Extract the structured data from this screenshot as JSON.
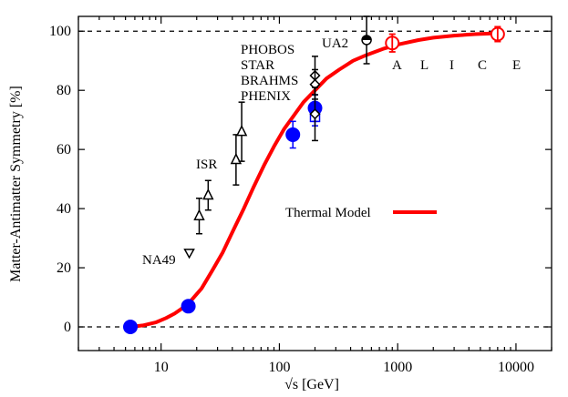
{
  "chart_data": {
    "type": "scatter",
    "title": "",
    "xlabel": "√s [GeV]",
    "ylabel": "Matter-Antimatter Symmetry [%]",
    "xscale": "log",
    "xlim": [
      2,
      20000
    ],
    "ylim": [
      -8,
      105
    ],
    "xticks": [
      {
        "value": 10,
        "label": "10"
      },
      {
        "value": 100,
        "label": "100"
      },
      {
        "value": 1000,
        "label": "1000"
      },
      {
        "value": 10000,
        "label": "10000"
      }
    ],
    "yticks": [
      {
        "value": 0,
        "label": "0"
      },
      {
        "value": 20,
        "label": "20"
      },
      {
        "value": 40,
        "label": "40"
      },
      {
        "value": 60,
        "label": "60"
      },
      {
        "value": 80,
        "label": "80"
      },
      {
        "value": 100,
        "label": "100"
      }
    ],
    "reference_lines": [
      0,
      100
    ],
    "thermal_model": {
      "name": "Thermal Model",
      "color": "#ff0000",
      "x": [
        5.5,
        7,
        9,
        11,
        13,
        16,
        18,
        22,
        27,
        33,
        40,
        50,
        60,
        75,
        90,
        110,
        130,
        160,
        200,
        250,
        320,
        420,
        550,
        750,
        1000,
        1500,
        2000,
        3000,
        4500,
        7000
      ],
      "y": [
        0,
        0.5,
        1.5,
        3,
        4.5,
        7,
        9,
        13,
        19,
        25,
        32,
        40,
        47,
        55,
        61,
        67,
        71,
        76,
        80,
        84,
        87,
        90,
        92,
        94,
        95.5,
        97,
        97.8,
        98.5,
        99,
        99.3
      ]
    },
    "series": [
      {
        "label": "NA49",
        "marker": "triangle-down-open",
        "color": "#000000",
        "points": [
          {
            "x": 17.3,
            "y": 25,
            "err": 0
          }
        ]
      },
      {
        "label": "",
        "marker": "triangle-up-open",
        "color": "#000000",
        "points": [
          {
            "x": 21,
            "y": 37.5,
            "err": 6
          },
          {
            "x": 25,
            "y": 44.5,
            "err": 5
          },
          {
            "x": 43,
            "y": 56.5,
            "err": 8.5
          },
          {
            "x": 48,
            "y": 66,
            "err": 10
          }
        ]
      },
      {
        "label": "",
        "marker": "circle-filled",
        "color": "#0000ff",
        "points": [
          {
            "x": 5.5,
            "y": 0,
            "err": 0
          },
          {
            "x": 17,
            "y": 7,
            "err": 0
          },
          {
            "x": 130,
            "y": 65,
            "err": 4.5
          },
          {
            "x": 200,
            "y": 74,
            "err": 4.5
          }
        ]
      },
      {
        "label": "",
        "marker": "square-open",
        "color": "#0000ff",
        "points": [
          {
            "x": 200,
            "y": 71,
            "err": 3
          }
        ]
      },
      {
        "label": "",
        "marker": "diamond-open",
        "color": "#000000",
        "points": [
          {
            "x": 200,
            "y": 85,
            "err": 6.5
          },
          {
            "x": 200,
            "y": 82,
            "err": 5
          },
          {
            "x": 200,
            "y": 72,
            "err": 9
          }
        ]
      },
      {
        "label": "UA2",
        "marker": "circle-half",
        "color": "#000000",
        "points": [
          {
            "x": 546,
            "y": 97,
            "err": 8
          }
        ]
      },
      {
        "label": "",
        "marker": "circle-open-large",
        "color": "#ff0000",
        "points": [
          {
            "x": 900,
            "y": 96,
            "err": 1.5
          },
          {
            "x": 7000,
            "y": 99,
            "err": 1
          }
        ]
      }
    ],
    "annotations": {
      "isr": "ISR",
      "phobos": "PHOBOS",
      "star": "STAR",
      "brahms": "BRAHMS",
      "phenix": "PHENIX",
      "alice": [
        "A",
        "L",
        "I",
        "C",
        "E"
      ]
    }
  }
}
